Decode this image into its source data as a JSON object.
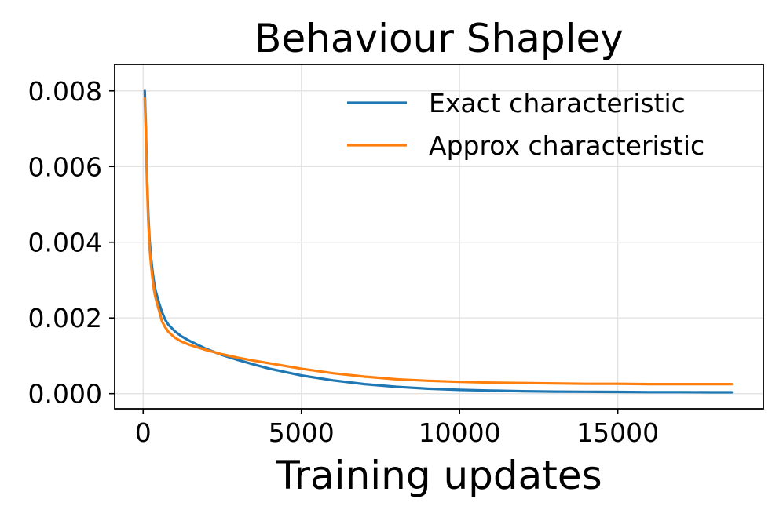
{
  "chart_data": {
    "type": "line",
    "title": "Behaviour Shapley",
    "xlabel": "Training updates",
    "ylabel": "",
    "xlim": [
      -900,
      19600
    ],
    "ylim": [
      -0.0004,
      0.0087
    ],
    "xticks": [
      0,
      5000,
      10000,
      15000
    ],
    "xtick_labels": [
      "0",
      "5000",
      "10000",
      "15000"
    ],
    "yticks": [
      0.0,
      0.002,
      0.004,
      0.006,
      0.008
    ],
    "ytick_labels": [
      "0.000",
      "0.002",
      "0.004",
      "0.006",
      "0.008"
    ],
    "grid": true,
    "legend_position": "top-right",
    "series": [
      {
        "name": "Exact characteristic",
        "color": "#1f77b4",
        "x": [
          50,
          80,
          120,
          160,
          200,
          250,
          300,
          350,
          400,
          500,
          600,
          700,
          800,
          1000,
          1200,
          1500,
          2000,
          2500,
          3000,
          3500,
          4000,
          5000,
          6000,
          7000,
          8000,
          9000,
          10000,
          11000,
          12000,
          13000,
          14000,
          15000,
          16000,
          17000,
          18000,
          18600
        ],
        "y": [
          0.008,
          0.0072,
          0.0058,
          0.0048,
          0.0041,
          0.0036,
          0.0032,
          0.0029,
          0.0027,
          0.0024,
          0.00215,
          0.00195,
          0.00182,
          0.00165,
          0.00152,
          0.00138,
          0.00118,
          0.00102,
          0.00089,
          0.00077,
          0.00066,
          0.00048,
          0.00035,
          0.00025,
          0.00018,
          0.00013,
          0.0001,
          8e-05,
          6.5e-05,
          5.5e-05,
          5e-05,
          4.5e-05,
          4e-05,
          4e-05,
          3.5e-05,
          3.5e-05
        ]
      },
      {
        "name": "Approx characteristic",
        "color": "#ff7f0e",
        "x": [
          50,
          80,
          120,
          160,
          200,
          250,
          300,
          350,
          400,
          500,
          600,
          700,
          800,
          1000,
          1200,
          1500,
          2000,
          2500,
          3000,
          3500,
          4000,
          5000,
          6000,
          7000,
          8000,
          9000,
          10000,
          11000,
          12000,
          13000,
          14000,
          15000,
          16000,
          17000,
          18000,
          18600
        ],
        "y": [
          0.0078,
          0.007,
          0.0056,
          0.0046,
          0.0039,
          0.0034,
          0.003,
          0.0027,
          0.0025,
          0.0022,
          0.0019,
          0.00175,
          0.00163,
          0.00148,
          0.00138,
          0.00128,
          0.00115,
          0.00104,
          0.00095,
          0.00087,
          0.0008,
          0.00066,
          0.00054,
          0.00045,
          0.00038,
          0.00034,
          0.00031,
          0.00029,
          0.00028,
          0.00027,
          0.00026,
          0.00026,
          0.00025,
          0.00025,
          0.00025,
          0.00025
        ]
      }
    ]
  }
}
